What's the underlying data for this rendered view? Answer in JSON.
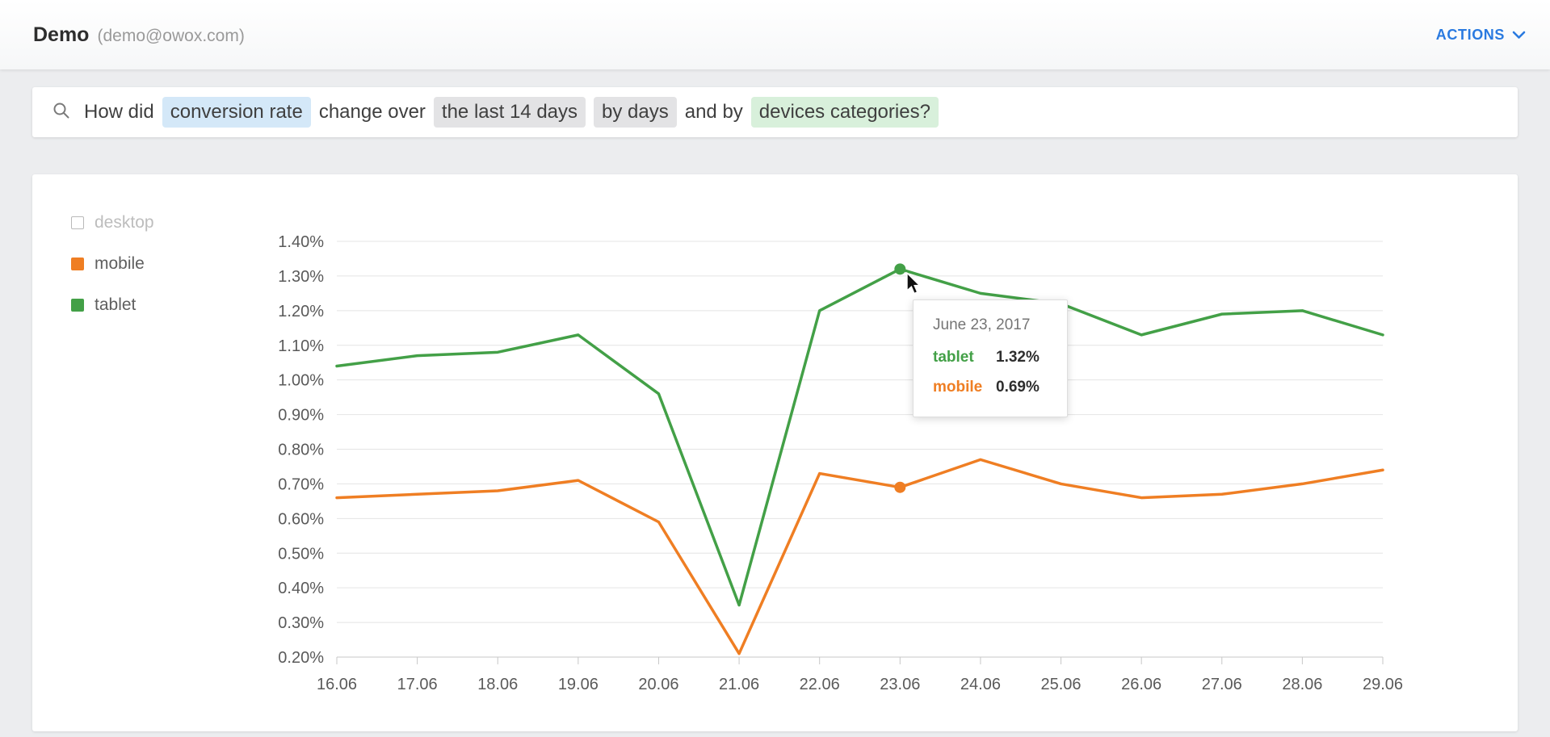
{
  "header": {
    "title": "Demo",
    "subtitle": "(demo@owox.com)",
    "actions_label": "ACTIONS"
  },
  "query": {
    "tokens": [
      {
        "text": "How did",
        "highlight": "none"
      },
      {
        "text": "conversion rate",
        "highlight": "blue"
      },
      {
        "text": "change over",
        "highlight": "none"
      },
      {
        "text": "the last 14 days",
        "highlight": "gray"
      },
      {
        "text": "by days",
        "highlight": "gray"
      },
      {
        "text": "and by",
        "highlight": "none"
      },
      {
        "text": "devices categories?",
        "highlight": "green"
      }
    ],
    "highlight_colors": {
      "none": "transparent",
      "blue": "#d4e8f8",
      "gray": "#e3e3e5",
      "green": "#d8f0db"
    }
  },
  "colors": {
    "accent_blue": "#2a7ae0",
    "mobile_orange": "#ef7e23",
    "tablet_green": "#43a047",
    "gridline": "#e4e4e4",
    "axis": "#c7c7c7",
    "tick_text": "#5a5a5a"
  },
  "chart_data": {
    "type": "line",
    "title": "",
    "xlabel": "",
    "ylabel": "",
    "x_categories": [
      "16.06",
      "17.06",
      "18.06",
      "19.06",
      "20.06",
      "21.06",
      "22.06",
      "23.06",
      "24.06",
      "25.06",
      "26.06",
      "27.06",
      "28.06",
      "29.06"
    ],
    "ylim": [
      0.2,
      1.4
    ],
    "y_tick_step": 0.1,
    "y_tick_suffix": "%",
    "grid": true,
    "legend_position": "left",
    "series": [
      {
        "name": "tablet",
        "color": "#43a047",
        "values": [
          1.04,
          1.07,
          1.08,
          1.13,
          0.96,
          0.35,
          1.2,
          1.32,
          1.25,
          1.22,
          1.13,
          1.19,
          1.2,
          1.13
        ]
      },
      {
        "name": "mobile",
        "color": "#ef7e23",
        "values": [
          0.66,
          0.67,
          0.68,
          0.71,
          0.59,
          0.21,
          0.73,
          0.69,
          0.77,
          0.7,
          0.66,
          0.67,
          0.7,
          0.74
        ]
      }
    ],
    "legend": [
      {
        "label": "desktop",
        "color": "#ffffff",
        "enabled": false
      },
      {
        "label": "mobile",
        "color": "#ef7e23",
        "enabled": true
      },
      {
        "label": "tablet",
        "color": "#43a047",
        "enabled": true
      }
    ],
    "tooltip": {
      "date": "June 23, 2017",
      "x_index": 7,
      "rows": [
        {
          "name": "tablet",
          "value": "1.32%",
          "color": "#43a047"
        },
        {
          "name": "mobile",
          "value": "0.69%",
          "color": "#ef7e23"
        }
      ]
    }
  }
}
